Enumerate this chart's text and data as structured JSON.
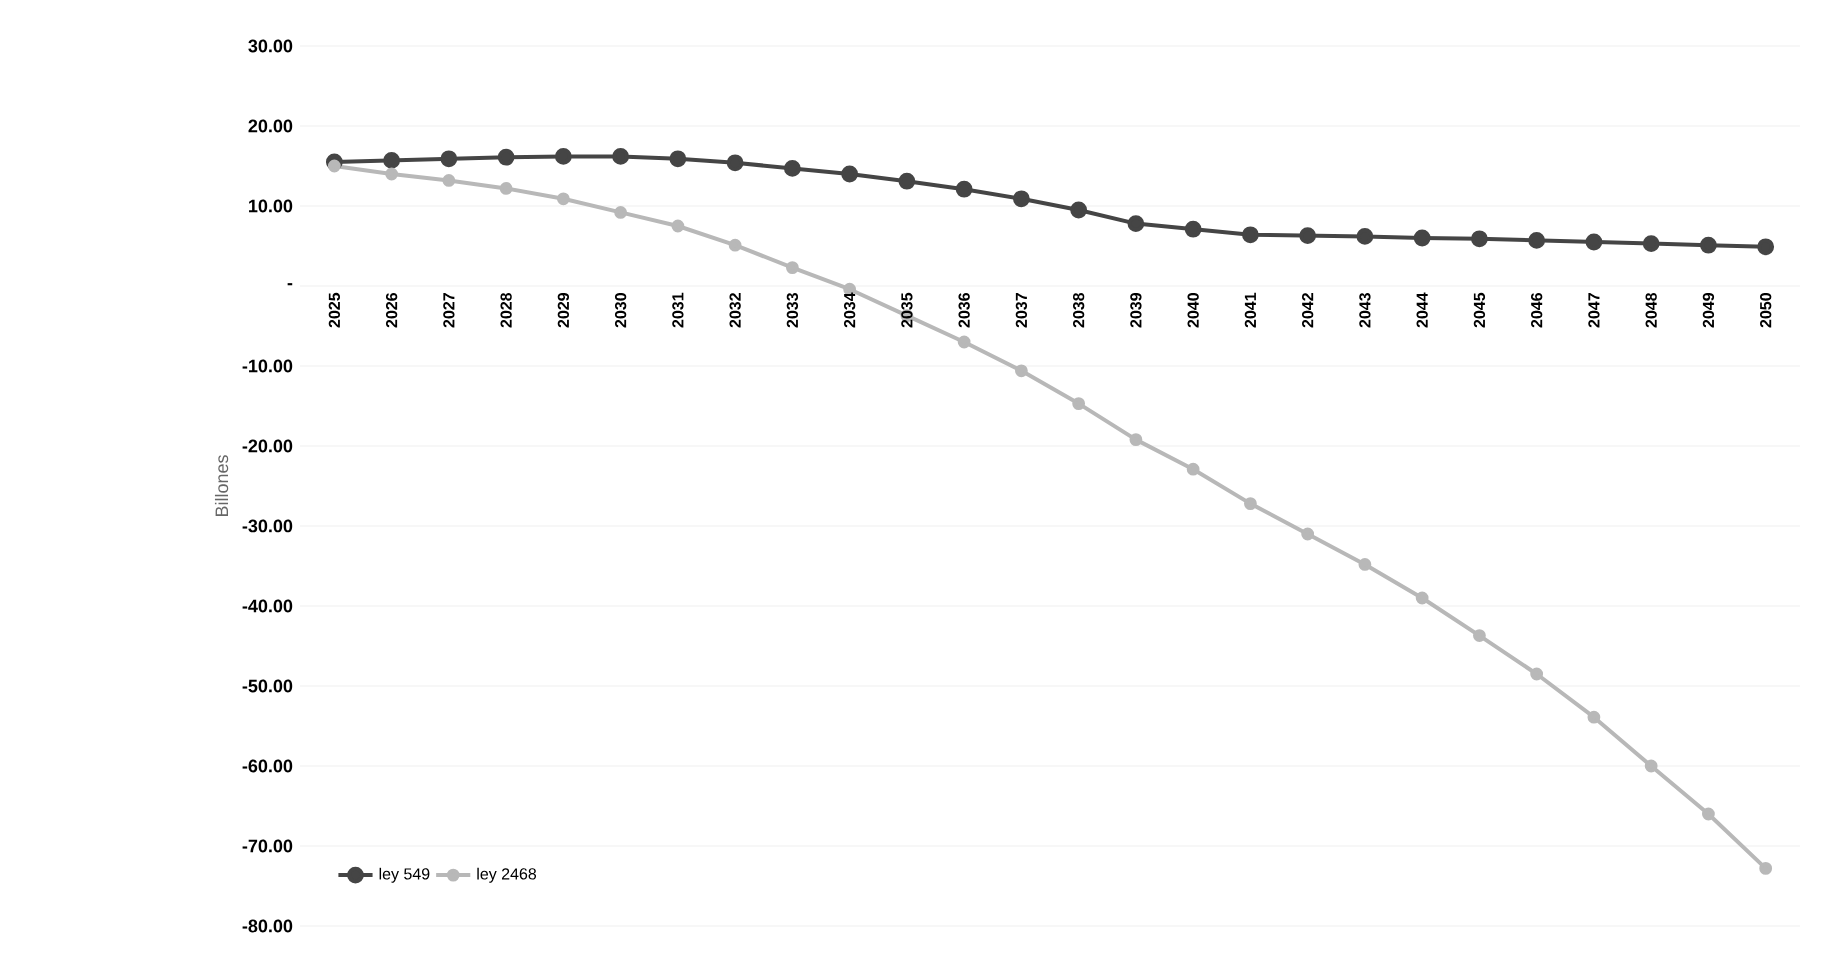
{
  "chart_data": {
    "type": "line",
    "ylabel": "Billones",
    "categories": [
      "2025",
      "2026",
      "2027",
      "2028",
      "2029",
      "2030",
      "2031",
      "2032",
      "2033",
      "2034",
      "2035",
      "2036",
      "2037",
      "2038",
      "2039",
      "2040",
      "2041",
      "2042",
      "2043",
      "2044",
      "2045",
      "2046",
      "2047",
      "2048",
      "2049",
      "2050"
    ],
    "series": [
      {
        "name": "ley 549",
        "color": "#454545",
        "values": [
          15.5,
          15.7,
          15.9,
          16.1,
          16.2,
          16.2,
          15.9,
          15.4,
          14.7,
          14.0,
          13.1,
          12.1,
          10.9,
          9.5,
          7.8,
          7.1,
          6.4,
          6.3,
          6.2,
          6.0,
          5.9,
          5.7,
          5.5,
          5.3,
          5.1,
          4.9
        ]
      },
      {
        "name": "ley 2468",
        "color": "#b8b8b8",
        "values": [
          15.0,
          14.0,
          13.2,
          12.2,
          10.9,
          9.2,
          7.5,
          5.1,
          2.3,
          -0.4,
          -3.7,
          -7.0,
          -10.6,
          -14.7,
          -19.2,
          -22.9,
          -27.2,
          -31.0,
          -34.8,
          -39.0,
          -43.7,
          -48.5,
          -53.9,
          -60.0,
          -66.0,
          -72.8
        ]
      }
    ],
    "ylim": [
      -80,
      30
    ],
    "yticks": [
      {
        "value": 30,
        "label": "30.00"
      },
      {
        "value": 20,
        "label": "20.00"
      },
      {
        "value": 10,
        "label": "10.00"
      },
      {
        "value": 0,
        "label": "-"
      },
      {
        "value": -10,
        "label": "-10.00"
      },
      {
        "value": -20,
        "label": "-20.00"
      },
      {
        "value": -30,
        "label": "-30.00"
      },
      {
        "value": -40,
        "label": "-40.00"
      },
      {
        "value": -50,
        "label": "-50.00"
      },
      {
        "value": -60,
        "label": "-60.00"
      },
      {
        "value": -70,
        "label": "-70.00"
      },
      {
        "value": -80,
        "label": "-80.00"
      }
    ],
    "grid": "y",
    "legend": "bottom left",
    "marker": "circle",
    "line_style": "solid"
  }
}
